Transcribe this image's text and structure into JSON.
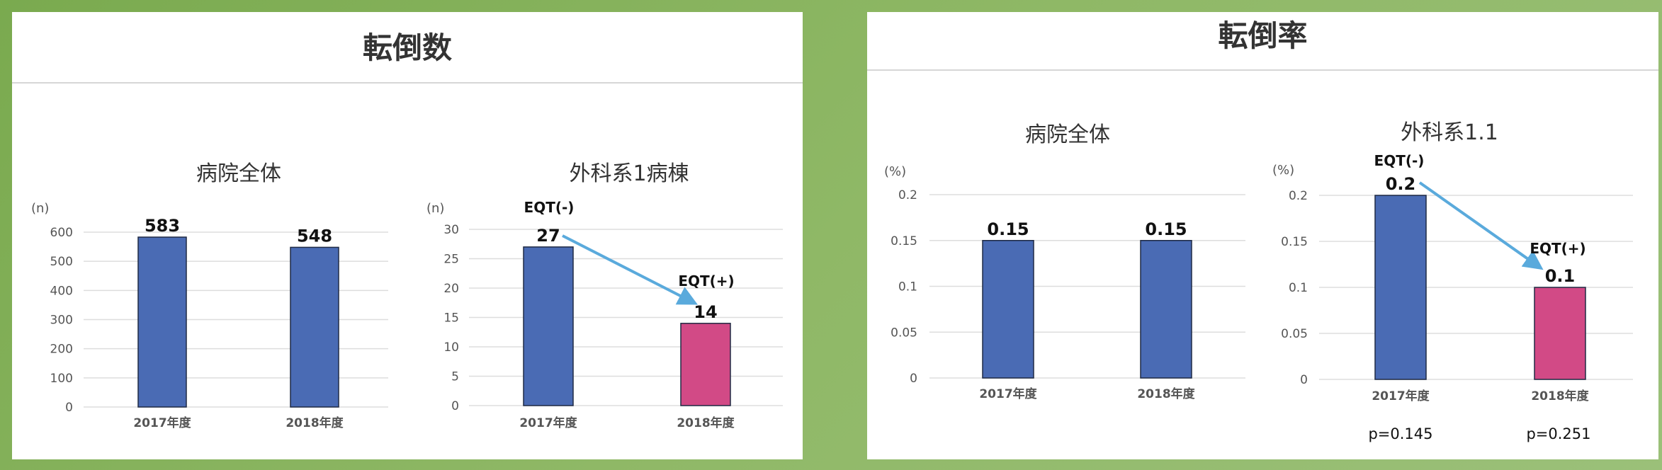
{
  "panels": {
    "left_title": "転倒数",
    "right_title": "転倒率"
  },
  "colors": {
    "blue": "#4a6bb4",
    "pink": "#d24a86",
    "arrow": "#5aaadc",
    "grid": "#dddddd"
  },
  "chart_data": [
    {
      "type": "bar",
      "title": "病院全体",
      "unit_label": "(n)",
      "categories": [
        "2017年度",
        "2018年度"
      ],
      "values": [
        583,
        548
      ],
      "value_labels": [
        "583",
        "548"
      ],
      "ylim": [
        0,
        600
      ],
      "yticks": [
        "0",
        "100",
        "200",
        "300",
        "400",
        "500",
        "600"
      ],
      "bar_colors": [
        "#4a6bb4",
        "#4a6bb4"
      ]
    },
    {
      "type": "bar",
      "title": "外科系1病棟",
      "unit_label": "(n)",
      "categories": [
        "2017年度",
        "2018年度"
      ],
      "values": [
        27,
        14
      ],
      "value_labels": [
        "27",
        "14"
      ],
      "ylim": [
        0,
        30
      ],
      "yticks": [
        "0",
        "5",
        "10",
        "15",
        "20",
        "25",
        "30"
      ],
      "bar_colors": [
        "#4a6bb4",
        "#d24a86"
      ],
      "annotations": [
        "EQT(-)",
        "EQT(+)"
      ]
    },
    {
      "type": "bar",
      "title": "病院全体",
      "unit_label": "(%)",
      "categories": [
        "2017年度",
        "2018年度"
      ],
      "values": [
        0.15,
        0.15
      ],
      "value_labels": [
        "0.15",
        "0.15"
      ],
      "ylim": [
        0,
        0.2
      ],
      "yticks": [
        "0",
        "0.05",
        "0.1",
        "0.15",
        "0.2"
      ],
      "bar_colors": [
        "#4a6bb4",
        "#4a6bb4"
      ]
    },
    {
      "type": "bar",
      "title": "外科系1.1",
      "unit_label": "(%)",
      "categories": [
        "2017年度",
        "2018年度"
      ],
      "values": [
        0.2,
        0.1
      ],
      "value_labels": [
        "0.2",
        "0.1"
      ],
      "ylim": [
        0,
        0.2
      ],
      "yticks": [
        "0",
        "0.05",
        "0.1",
        "0.15",
        "0.2"
      ],
      "bar_colors": [
        "#4a6bb4",
        "#d24a86"
      ],
      "annotations": [
        "EQT(-)",
        "EQT(+)"
      ],
      "p_values": [
        "p=0.145",
        "p=0.251"
      ]
    }
  ]
}
